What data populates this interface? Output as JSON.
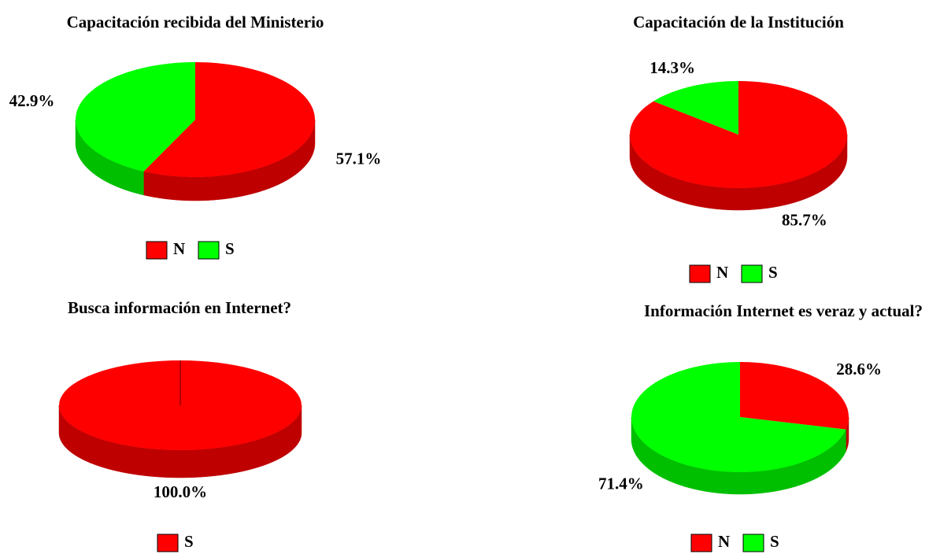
{
  "chart_data": [
    {
      "type": "pie",
      "title": "Capacitación recibida del Ministerio",
      "categories": [
        "N",
        "S"
      ],
      "values": [
        57.1,
        42.9
      ],
      "value_labels": [
        "57.1%",
        "42.9%"
      ],
      "colors": [
        "#ff0000",
        "#00ff00"
      ]
    },
    {
      "type": "pie",
      "title": "Capacitación de la Institución",
      "categories": [
        "N",
        "S"
      ],
      "values": [
        85.7,
        14.3
      ],
      "value_labels": [
        "85.7%",
        "14.3%"
      ],
      "colors": [
        "#ff0000",
        "#00ff00"
      ]
    },
    {
      "type": "pie",
      "title": "Busca información en Internet?",
      "categories": [
        "S"
      ],
      "values": [
        100.0
      ],
      "value_labels": [
        "100.0%"
      ],
      "colors": [
        "#ff0000"
      ]
    },
    {
      "type": "pie",
      "title": "Información Internet es veraz y actual?",
      "categories": [
        "N",
        "S"
      ],
      "values": [
        28.6,
        71.4
      ],
      "value_labels": [
        "28.6%",
        "71.4%"
      ],
      "colors": [
        "#ff0000",
        "#00ff00"
      ]
    }
  ]
}
